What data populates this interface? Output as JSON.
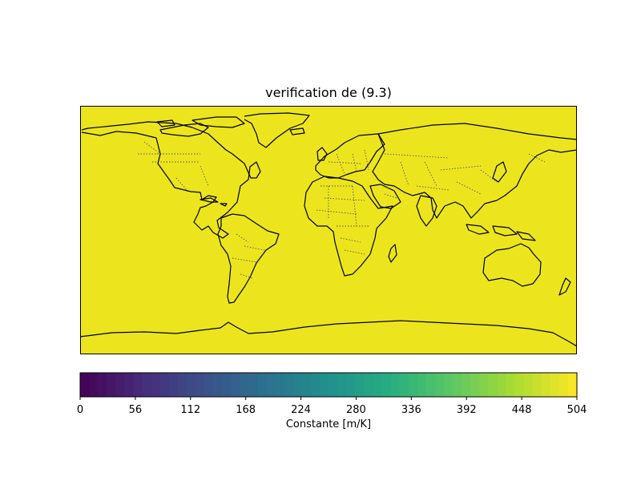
{
  "title": "verification de (9.3)",
  "map": {
    "fill_color": "#ece51e",
    "coastline_color": "#000000",
    "border_color": "#555555",
    "border_style": "dotted",
    "projection": "plate carree"
  },
  "colorbar": {
    "label": "Constante [m/K]",
    "colormap": "viridis",
    "orientation": "horizontal",
    "min": 0,
    "max": 504,
    "ticks": [
      0,
      56,
      112,
      168,
      224,
      280,
      336,
      392,
      448,
      504
    ],
    "tick_labels": [
      "0",
      "56",
      "112",
      "168",
      "224",
      "280",
      "336",
      "392",
      "448",
      "504"
    ],
    "levels": 56
  },
  "chart_data": {
    "type": "heatmap",
    "title": "verification de (9.3)",
    "field_value": 504,
    "colorbar_label": "Constante [m/K]",
    "vmin": 0,
    "vmax": 504,
    "extent": {
      "lon": [
        -180,
        180
      ],
      "lat": [
        -90,
        90
      ]
    }
  }
}
